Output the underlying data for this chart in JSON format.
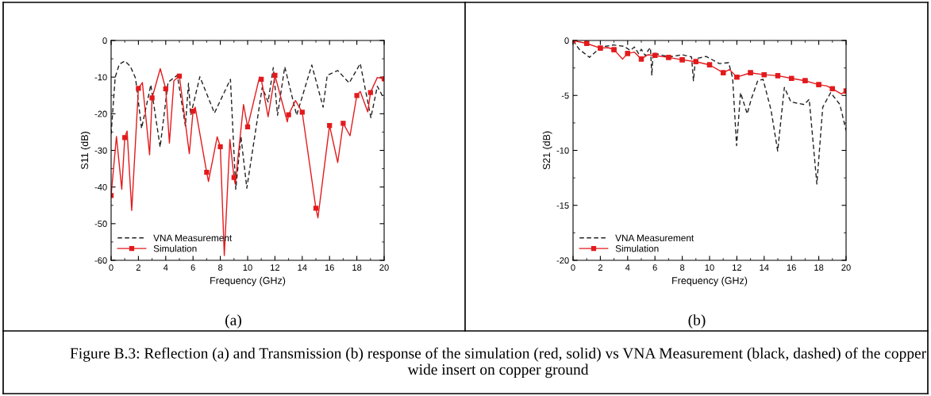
{
  "chart_data": [
    {
      "type": "line",
      "ylabel": "S11 (dB)",
      "xlabel": "Frequency (GHz)",
      "xlim": [
        0,
        20
      ],
      "xticks": [
        0,
        2,
        4,
        6,
        8,
        10,
        12,
        14,
        16,
        18,
        20
      ],
      "ylim": [
        -60,
        0
      ],
      "yticks": [
        -60,
        -50,
        -40,
        -30,
        -20,
        -10,
        0
      ],
      "legend": "bottom left",
      "annotations": [
        "(a)",
        "Figure B.3: Reflection (a) and Transmission (b) response of the simulation (red, solid) vs VNA Measurement (black, dashed) of the copper wide insert on copper ground"
      ],
      "series": [
        {
          "name": "VNA Measurement",
          "color": "#222222",
          "line_style": "dashed",
          "marker": "none",
          "x": [
            0,
            0.3,
            0.6,
            1.0,
            1.4,
            1.79,
            2.23,
            2.91,
            3.59,
            3.84,
            4.17,
            4.85,
            5.44,
            5.67,
            5.83,
            6.5,
            7.57,
            8.74,
            9.13,
            9.51,
            9.94,
            11.07,
            11.5,
            11.88,
            12.19,
            12.72,
            13.59,
            14.7,
            15.53,
            15.83,
            16.6,
            17.44,
            18.25,
            19.03,
            19.5,
            20
          ],
          "values": [
            -25.5,
            -10,
            -6.5,
            -5.6,
            -7,
            -10.3,
            -24,
            -12.1,
            -29.1,
            -21.5,
            -11.4,
            -9.5,
            -23.3,
            -11.7,
            -20.4,
            -9.9,
            -19.8,
            -10.6,
            -40.6,
            -26.2,
            -40.3,
            -12.8,
            -16.8,
            -7.4,
            -20.4,
            -7.2,
            -20.4,
            -6.7,
            -18.2,
            -9.5,
            -8.2,
            -11.6,
            -6.3,
            -21.1,
            -12.5,
            -16
          ]
        },
        {
          "type": "scatter",
          "color": "#e31a1c",
          "marker": "square",
          "x": [
            0,
            1,
            2,
            3,
            4,
            5,
            6,
            7,
            8,
            9,
            10,
            11,
            12,
            13,
            14,
            15,
            16,
            17,
            18,
            19,
            20
          ],
          "values": [
            -42.3,
            -26.5,
            -13.1,
            -15.7,
            -13.2,
            -9.7,
            -19.3,
            -36,
            -29,
            -37.4,
            -23.6,
            -10.6,
            -9.5,
            -20.3,
            -19.6,
            -45.8,
            -23.2,
            -22.6,
            -15,
            -14.2,
            -10.5
          ]
        },
        {
          "name": "Simulation",
          "color": "#e31a1c",
          "line_style": "solid",
          "marker": "none",
          "x": [
            0,
            0.39,
            0.78,
            1,
            1.17,
            1.51,
            2,
            2.29,
            2.82,
            3,
            3.6,
            4,
            4.27,
            4.6,
            5,
            5.73,
            6,
            6.16,
            7,
            7.13,
            7.77,
            8,
            8.29,
            8.7,
            9,
            9.09,
            9.7,
            10,
            10.87,
            11,
            11.5,
            12,
            12.91,
            13,
            13.5,
            14,
            15,
            15.15,
            16,
            16.6,
            17,
            17.5,
            18,
            18.25,
            18.8,
            19,
            19.5,
            20
          ],
          "values": [
            -42.3,
            -26.2,
            -40.6,
            -26.5,
            -24.7,
            -46.4,
            -13.1,
            -11.5,
            -31.2,
            -15.7,
            -7.7,
            -13.2,
            -28,
            -11,
            -9.7,
            -30.9,
            -19.3,
            -18.2,
            -36,
            -38.5,
            -26.3,
            -29,
            -58.7,
            -27,
            -37.4,
            -39.2,
            -17.5,
            -23.6,
            -10,
            -10.6,
            -20.8,
            -9.5,
            -22.2,
            -20.3,
            -16.4,
            -19.6,
            -45.8,
            -48.4,
            -23.2,
            -33.3,
            -22.6,
            -26,
            -15,
            -13.9,
            -19.5,
            -14.2,
            -10.1,
            -10.5
          ]
        }
      ]
    },
    {
      "type": "line",
      "ylabel": "S21 (dB)",
      "xlabel": "Frequency (GHz)",
      "xlim": [
        0,
        20
      ],
      "xticks": [
        0,
        2,
        4,
        6,
        8,
        10,
        12,
        14,
        16,
        18,
        20
      ],
      "ylim": [
        -20,
        0
      ],
      "yticks": [
        -20,
        -15,
        -10,
        -5,
        0
      ],
      "legend": "bottom left",
      "annotations": [
        "(b)"
      ],
      "series": [
        {
          "name": "VNA Measurement",
          "color": "#222222",
          "line_style": "dashed",
          "marker": "none",
          "x": [
            0,
            0.43,
            1.2,
            1.69,
            2.17,
            2.95,
            3.73,
            4.2,
            4.5,
            4.8,
            5.0,
            5.3,
            5.5,
            5.67,
            5.77,
            5.86,
            7.03,
            8.0,
            8.68,
            8.82,
            8.97,
            9.75,
            10.72,
            11.4,
            11.69,
            11.98,
            12.27,
            12.76,
            13.05,
            13.53,
            13.92,
            14.5,
            14.99,
            15.48,
            15.96,
            16.93,
            17.3,
            17.86,
            18.29,
            18.87,
            19.55,
            20
          ],
          "values": [
            0,
            -0.77,
            -1.54,
            -1.0,
            -0.58,
            -0.41,
            -0.53,
            -0.9,
            -0.6,
            -1.2,
            -0.8,
            -1.4,
            -0.9,
            -0.65,
            -3.18,
            -1.13,
            -1.5,
            -1.3,
            -1.5,
            -3.66,
            -1.66,
            -1.45,
            -2.1,
            -2.02,
            -3.42,
            -9.57,
            -4.75,
            -6.67,
            -5.35,
            -3.66,
            -3.54,
            -6.31,
            -10.05,
            -4.27,
            -5.59,
            -5.83,
            -5.35,
            -13.06,
            -6.07,
            -4.75,
            -5.83,
            -8.2
          ]
        },
        {
          "name": "Simulation",
          "color": "#e31a1c",
          "line_style": "solid",
          "marker": "square",
          "x": [
            0,
            1,
            2,
            2.56,
            3,
            3.63,
            4,
            4.5,
            5,
            5.48,
            6,
            7,
            8,
            9,
            10,
            11,
            11.46,
            12,
            13,
            14,
            15,
            16,
            17,
            18,
            18.6,
            19,
            19.65,
            20
          ],
          "values": [
            0,
            -0.27,
            -0.7,
            -0.65,
            -0.84,
            -1.69,
            -1.18,
            -1.06,
            -1.69,
            -1.3,
            -1.37,
            -1.54,
            -1.76,
            -1.93,
            -2.22,
            -2.94,
            -2.65,
            -3.33,
            -2.94,
            -3.11,
            -3.2,
            -3.45,
            -3.66,
            -4.02,
            -4.14,
            -4.39,
            -4.87,
            -4.6
          ]
        }
      ]
    }
  ]
}
